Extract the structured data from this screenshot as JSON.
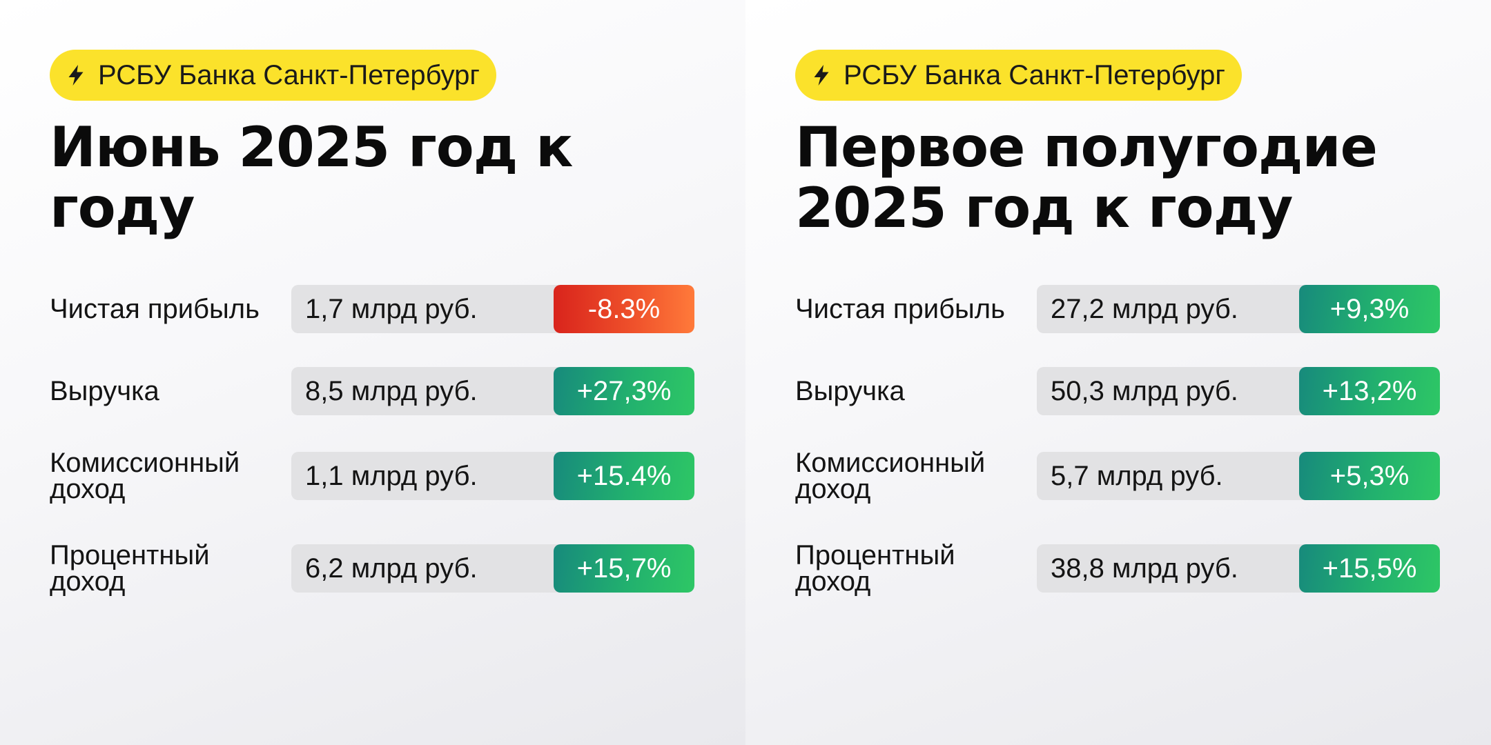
{
  "colors": {
    "badge_bg": "#fbe22b",
    "bar_bg": "#e2e2e4",
    "negative": "#e8402a",
    "positive": "#24b56c"
  },
  "panels": [
    {
      "badge": {
        "icon": "lightning-icon",
        "text": "РСБУ Банка Санкт-Петербург"
      },
      "title": "Июнь 2025 год к году",
      "rows": [
        {
          "label": "Чистая прибыль",
          "value": "1,7 млрд руб.",
          "delta": "-8.3%",
          "trend": "negative"
        },
        {
          "label": "Выручка",
          "value": "8,5 млрд руб.",
          "delta": "+27,3%",
          "trend": "positive"
        },
        {
          "label": "Комиссионный доход",
          "value": "1,1 млрд руб.",
          "delta": "+15.4%",
          "trend": "positive"
        },
        {
          "label": "Процентный доход",
          "value": "6,2 млрд руб.",
          "delta": "+15,7%",
          "trend": "positive"
        }
      ]
    },
    {
      "badge": {
        "icon": "lightning-icon",
        "text": "РСБУ Банка Санкт-Петербург"
      },
      "title": "Первое полугодие 2025 год к году",
      "rows": [
        {
          "label": "Чистая прибыль",
          "value": "27,2 млрд руб.",
          "delta": "+9,3%",
          "trend": "positive"
        },
        {
          "label": "Выручка",
          "value": "50,3 млрд руб.",
          "delta": "+13,2%",
          "trend": "positive"
        },
        {
          "label": "Комиссионный доход",
          "value": "5,7 млрд руб.",
          "delta": "+5,3%",
          "trend": "positive"
        },
        {
          "label": "Процентный доход",
          "value": "38,8 млрд руб.",
          "delta": "+15,5%",
          "trend": "positive"
        }
      ]
    }
  ]
}
